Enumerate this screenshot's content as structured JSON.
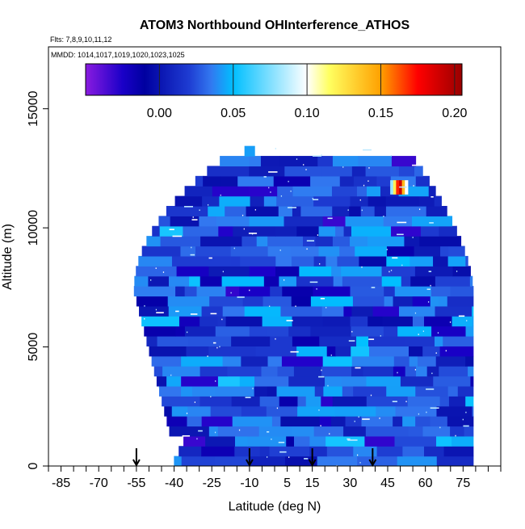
{
  "chart_data": {
    "type": "heatmap",
    "title": "ATOM3 Northbound OHInterference_ATHOS",
    "subtitle_flights": "Flts: 7,8,9,10,11,12",
    "subtitle_dates": "MMDD: 1014,1017,1019,1020,1023,1025",
    "xlabel": "Latitude (deg N)",
    "ylabel": "Altitude (m)",
    "xlim": [
      -90,
      90
    ],
    "ylim": [
      0,
      17600
    ],
    "x_ticks": [
      -85,
      -70,
      -55,
      -40,
      -25,
      -10,
      5,
      15,
      30,
      45,
      60,
      75
    ],
    "y_ticks": [
      0,
      5000,
      10000,
      15000
    ],
    "y_tick_labels": [
      "0",
      "5000",
      "10000",
      "15000"
    ],
    "grid": false,
    "colorbar": {
      "placement": "top-inside",
      "min": -0.05,
      "max": 0.205,
      "ticks": [
        0.0,
        0.05,
        0.1,
        0.15,
        0.2
      ],
      "tick_labels": [
        "0.00",
        "0.05",
        "0.10",
        "0.15",
        "0.20"
      ],
      "colors": [
        "#8a1be0",
        "#1a00c8",
        "#0000a0",
        "#1e3cd2",
        "#3278f0",
        "#00bfff",
        "#ffffff",
        "#ffff60",
        "#ffa000",
        "#ff0000",
        "#990000"
      ]
    },
    "arrows_latitude": [
      -55,
      -10,
      15,
      39
    ],
    "field": {
      "lat_range": [
        -56,
        79
      ],
      "alt_range": [
        0,
        13400
      ],
      "background_value": 0.02,
      "hotspot": {
        "lat": [
          46,
          53
        ],
        "alt": [
          11400,
          12000
        ],
        "values": [
          0.08,
          0.12,
          0.17,
          0.19,
          0.14,
          0.1
        ]
      }
    }
  }
}
